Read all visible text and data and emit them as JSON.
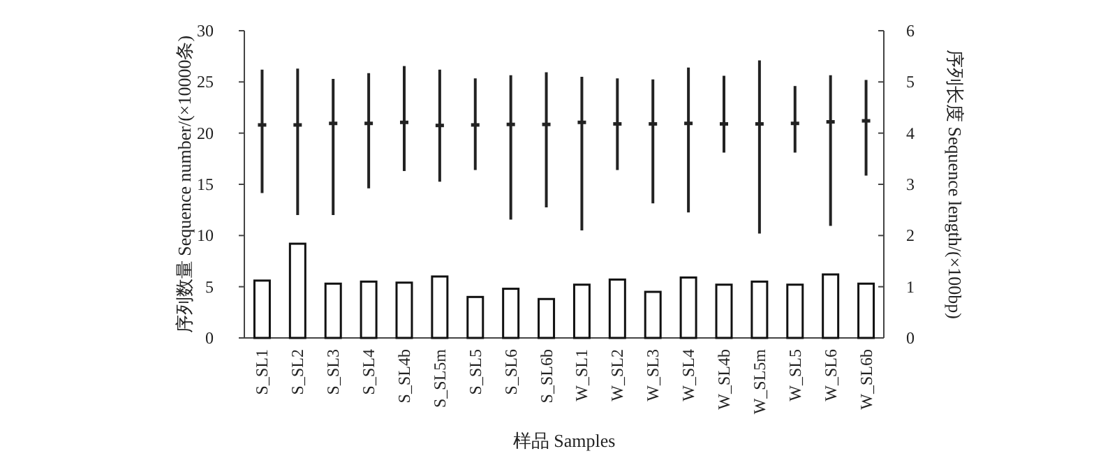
{
  "chart_data": {
    "type": "bar",
    "xlabel": "样品 Samples",
    "ylabel": "序列数量 Sequence number/(×10000条)",
    "y2label": "序列长度 Sequence length/(×100bp)",
    "categories": [
      "S_SL1",
      "S_SL2",
      "S_SL3",
      "S_SL4",
      "S_SL4b",
      "S_SL5m",
      "S_SL5",
      "S_SL6",
      "S_SL6b",
      "W_SL1",
      "W_SL2",
      "W_SL3",
      "W_SL4",
      "W_SL4b",
      "W_SL5m",
      "W_SL5",
      "W_SL6",
      "W_SL6b"
    ],
    "ylim": [
      0,
      30
    ],
    "yticks": [
      0,
      5,
      10,
      15,
      20,
      25,
      30
    ],
    "y2lim": [
      0,
      6
    ],
    "y2ticks": [
      0,
      1,
      2,
      3,
      4,
      5,
      6
    ],
    "series": [
      {
        "color": "#ffffff",
        "values": [
          5.6,
          9.2,
          5.3,
          5.5,
          5.4,
          6.0,
          4.0,
          4.8,
          3.8,
          5.2,
          5.7,
          4.5,
          5.9,
          5.2,
          5.5,
          5.2,
          6.2,
          5.3
        ]
      },
      {
        "type": "scatter",
        "axis": "y2",
        "color": "#222222",
        "values": [
          4.16,
          4.16,
          4.19,
          4.19,
          4.21,
          4.15,
          4.16,
          4.17,
          4.17,
          4.21,
          4.18,
          4.18,
          4.19,
          4.18,
          4.18,
          4.19,
          4.22,
          4.24
        ],
        "errors": [
          [
            2.83,
            5.24
          ],
          [
            2.4,
            5.26
          ],
          [
            2.4,
            5.06
          ],
          [
            2.92,
            5.17
          ],
          [
            3.26,
            5.31
          ],
          [
            3.05,
            5.24
          ],
          [
            3.28,
            5.07
          ],
          [
            2.31,
            5.13
          ],
          [
            2.55,
            5.19
          ],
          [
            2.1,
            5.1
          ],
          [
            3.28,
            5.07
          ],
          [
            2.63,
            5.05
          ],
          [
            2.45,
            5.28
          ],
          [
            3.62,
            5.12
          ],
          [
            2.04,
            5.42
          ],
          [
            3.62,
            4.92
          ],
          [
            2.19,
            5.13
          ],
          [
            3.17,
            5.04
          ]
        ]
      }
    ]
  }
}
